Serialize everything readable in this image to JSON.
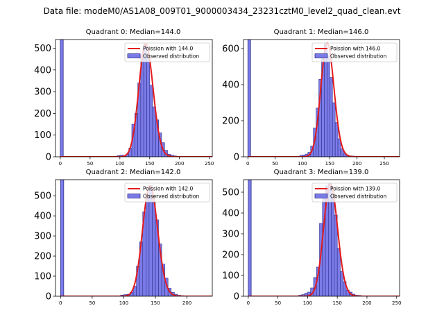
{
  "figure": {
    "suptitle": "Data file: modeM0/AS1A08_009T01_9000003434_23231cztM0_level2_quad_clean.evt"
  },
  "chart_data": [
    {
      "type": "bar",
      "title": "Quadrant 0: Median=144.0",
      "median": 144.0,
      "xlim": [
        -8,
        255
      ],
      "ylim": [
        0,
        540
      ],
      "xticks": [
        0,
        50,
        100,
        150,
        200,
        250
      ],
      "yticks": [
        0,
        100,
        200,
        300,
        400,
        500
      ],
      "bin_width": 5,
      "zero_bin": {
        "x": 0,
        "value": 540
      },
      "bins": [
        {
          "x": 95,
          "value": 5
        },
        {
          "x": 100,
          "value": 8
        },
        {
          "x": 105,
          "value": 6
        },
        {
          "x": 110,
          "value": 12
        },
        {
          "x": 115,
          "value": 40
        },
        {
          "x": 120,
          "value": 150
        },
        {
          "x": 125,
          "value": 200
        },
        {
          "x": 130,
          "value": 340
        },
        {
          "x": 135,
          "value": 470
        },
        {
          "x": 140,
          "value": 520
        },
        {
          "x": 145,
          "value": 460
        },
        {
          "x": 150,
          "value": 330
        },
        {
          "x": 155,
          "value": 230
        },
        {
          "x": 160,
          "value": 170
        },
        {
          "x": 165,
          "value": 110
        },
        {
          "x": 170,
          "value": 65
        },
        {
          "x": 175,
          "value": 30
        },
        {
          "x": 180,
          "value": 12
        },
        {
          "x": 185,
          "value": 8
        },
        {
          "x": 190,
          "value": 4
        }
      ],
      "legend": {
        "line_label": "Poission with 144.0",
        "bar_label": "Observed distribution",
        "location": "upper right"
      }
    },
    {
      "type": "bar",
      "title": "Quadrant 1: Median=146.0",
      "median": 146.0,
      "xlim": [
        -8,
        278
      ],
      "ylim": [
        0,
        650
      ],
      "xticks": [
        0,
        50,
        100,
        150,
        200,
        250
      ],
      "yticks": [
        0,
        200,
        400,
        600
      ],
      "bin_width": 5,
      "zero_bin": {
        "x": 0,
        "value": 650
      },
      "bins": [
        {
          "x": 95,
          "value": 8
        },
        {
          "x": 100,
          "value": 10
        },
        {
          "x": 105,
          "value": 15
        },
        {
          "x": 110,
          "value": 25
        },
        {
          "x": 115,
          "value": 60
        },
        {
          "x": 120,
          "value": 160
        },
        {
          "x": 125,
          "value": 270
        },
        {
          "x": 130,
          "value": 430
        },
        {
          "x": 135,
          "value": 560
        },
        {
          "x": 140,
          "value": 630
        },
        {
          "x": 145,
          "value": 560
        },
        {
          "x": 150,
          "value": 440
        },
        {
          "x": 155,
          "value": 300
        },
        {
          "x": 160,
          "value": 190
        },
        {
          "x": 165,
          "value": 100
        },
        {
          "x": 170,
          "value": 45
        },
        {
          "x": 175,
          "value": 20
        },
        {
          "x": 180,
          "value": 10
        },
        {
          "x": 185,
          "value": 5
        },
        {
          "x": 190,
          "value": 4
        }
      ],
      "legend": {
        "line_label": "Poission with 146.0",
        "bar_label": "Observed distribution",
        "location": "upper right"
      }
    },
    {
      "type": "bar",
      "title": "Quadrant 2: Median=142.0",
      "median": 142.0,
      "xlim": [
        -8,
        240
      ],
      "ylim": [
        0,
        580
      ],
      "xticks": [
        0,
        50,
        100,
        150,
        200
      ],
      "yticks": [
        0,
        100,
        200,
        300,
        400,
        500
      ],
      "bin_width": 5,
      "zero_bin": {
        "x": 0,
        "value": 580
      },
      "bins": [
        {
          "x": 95,
          "value": 6
        },
        {
          "x": 100,
          "value": 8
        },
        {
          "x": 105,
          "value": 10
        },
        {
          "x": 110,
          "value": 20
        },
        {
          "x": 115,
          "value": 50
        },
        {
          "x": 120,
          "value": 150
        },
        {
          "x": 125,
          "value": 270
        },
        {
          "x": 130,
          "value": 420
        },
        {
          "x": 135,
          "value": 500
        },
        {
          "x": 140,
          "value": 550
        },
        {
          "x": 145,
          "value": 470
        },
        {
          "x": 150,
          "value": 380
        },
        {
          "x": 155,
          "value": 260
        },
        {
          "x": 160,
          "value": 160
        },
        {
          "x": 165,
          "value": 90
        },
        {
          "x": 170,
          "value": 40
        },
        {
          "x": 175,
          "value": 20
        },
        {
          "x": 180,
          "value": 10
        },
        {
          "x": 185,
          "value": 5
        },
        {
          "x": 190,
          "value": 3
        }
      ],
      "legend": {
        "line_label": "Poission with 142.0",
        "bar_label": "Observed distribution",
        "location": "upper right"
      }
    },
    {
      "type": "bar",
      "title": "Quadrant 3: Median=139.0",
      "median": 139.0,
      "xlim": [
        -8,
        255
      ],
      "ylim": [
        0,
        560
      ],
      "xticks": [
        0,
        50,
        100,
        150,
        200,
        250
      ],
      "yticks": [
        0,
        100,
        200,
        300,
        400,
        500
      ],
      "bin_width": 5,
      "zero_bin": {
        "x": 0,
        "value": 560
      },
      "bins": [
        {
          "x": 85,
          "value": 5
        },
        {
          "x": 90,
          "value": 8
        },
        {
          "x": 95,
          "value": 15
        },
        {
          "x": 100,
          "value": 20
        },
        {
          "x": 105,
          "value": 40
        },
        {
          "x": 110,
          "value": 90
        },
        {
          "x": 115,
          "value": 140
        },
        {
          "x": 120,
          "value": 350
        },
        {
          "x": 125,
          "value": 490
        },
        {
          "x": 130,
          "value": 530
        },
        {
          "x": 135,
          "value": 540
        },
        {
          "x": 140,
          "value": 490
        },
        {
          "x": 145,
          "value": 390
        },
        {
          "x": 150,
          "value": 230
        },
        {
          "x": 155,
          "value": 120
        },
        {
          "x": 160,
          "value": 70
        },
        {
          "x": 165,
          "value": 30
        },
        {
          "x": 170,
          "value": 20
        },
        {
          "x": 175,
          "value": 10
        },
        {
          "x": 180,
          "value": 5
        },
        {
          "x": 185,
          "value": 4
        }
      ],
      "legend": {
        "line_label": "Poission with 139.0",
        "bar_label": "Observed distribution",
        "location": "upper right"
      }
    }
  ],
  "colors": {
    "bar_fill": "#7b7be8",
    "bar_edge": "#30308a",
    "line": "#e41a1c",
    "axis": "#000000"
  }
}
